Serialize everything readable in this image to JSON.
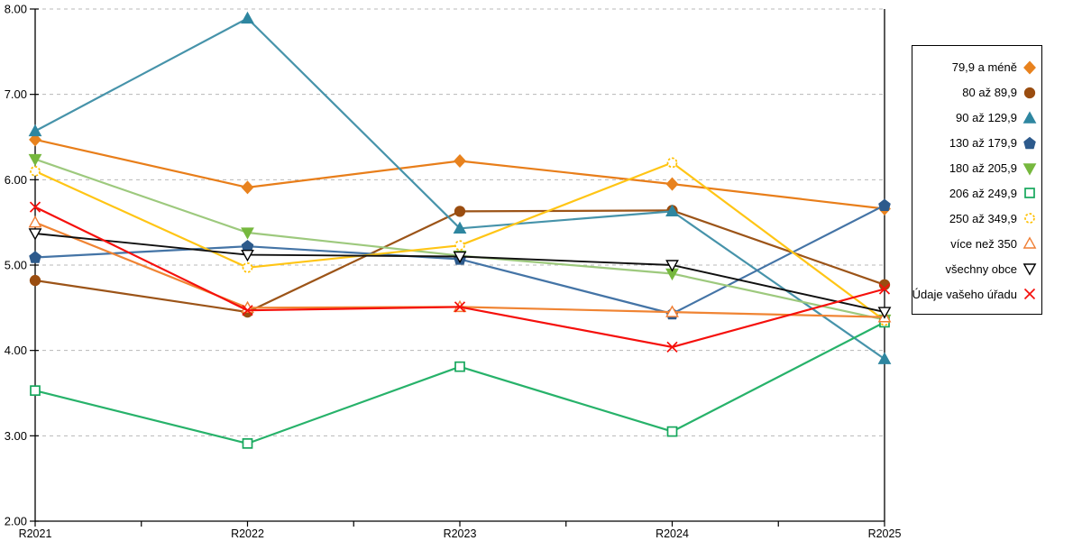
{
  "chart_data": {
    "type": "line",
    "title": "",
    "xlabel": "",
    "ylabel": "",
    "categories": [
      "R2021",
      "R2022",
      "R2023",
      "R2024",
      "R2025"
    ],
    "ylim": [
      2,
      8
    ],
    "ytick_step": 1,
    "ytick_labels": [
      "2.00",
      "3.00",
      "4.00",
      "5.00",
      "6.00",
      "7.00",
      "8.00"
    ],
    "grid": "horizontal-dashed",
    "grid_color": "#b8b8b8",
    "axis_color": "#000000",
    "legend_position": "right",
    "series": [
      {
        "name": "79,9 a méně",
        "marker": "diamond",
        "fill": "filled",
        "color": "#E8821E",
        "line_color": "#E87E1A",
        "values": [
          6.47,
          5.91,
          6.22,
          5.95,
          5.66
        ]
      },
      {
        "name": "80 až 89,9",
        "marker": "circle",
        "fill": "filled",
        "color": "#9A4D10",
        "line_color": "#9C5418",
        "values": [
          4.82,
          4.45,
          5.63,
          5.64,
          4.77
        ]
      },
      {
        "name": "90 až 129,9",
        "marker": "triangle-up",
        "fill": "filled",
        "color": "#2E86A0",
        "line_color": "#4693AA",
        "values": [
          6.57,
          7.89,
          5.43,
          5.63,
          3.9
        ]
      },
      {
        "name": "130 až 179,9",
        "marker": "pentagon",
        "fill": "filled",
        "color": "#2D5A8C",
        "line_color": "#4474A6",
        "values": [
          5.09,
          5.22,
          5.07,
          4.43,
          5.7
        ]
      },
      {
        "name": "180 až 205,9",
        "marker": "triangle-down",
        "fill": "filled",
        "color": "#76B83E",
        "line_color": "#9DC97D",
        "values": [
          6.24,
          5.38,
          5.11,
          4.9,
          4.36
        ]
      },
      {
        "name": "206 až 249,9",
        "marker": "square",
        "fill": "open",
        "color": "#16A75C",
        "line_color": "#27B26A",
        "values": [
          3.53,
          2.91,
          3.81,
          3.05,
          4.33
        ]
      },
      {
        "name": "250 až 349,9",
        "marker": "circle-dashed",
        "fill": "open",
        "color": "#FFC000",
        "line_color": "#FFC515",
        "values": [
          6.1,
          4.97,
          5.23,
          6.2,
          4.35
        ]
      },
      {
        "name": "více než 350",
        "marker": "triangle-up",
        "fill": "open",
        "color": "#F07E33",
        "line_color": "#F08433",
        "values": [
          5.5,
          4.5,
          4.51,
          4.45,
          4.39
        ]
      },
      {
        "name": "všechny obce",
        "marker": "triangle-down",
        "fill": "open",
        "color": "#000000",
        "line_color": "#101010",
        "values": [
          5.37,
          5.12,
          5.1,
          5.0,
          4.45
        ]
      },
      {
        "name": "Údaje vašeho úřadu",
        "marker": "x",
        "fill": "open",
        "color": "#F5100C",
        "line_color": "#F5100C",
        "values": [
          5.68,
          4.47,
          4.51,
          4.04,
          4.72
        ]
      }
    ]
  }
}
